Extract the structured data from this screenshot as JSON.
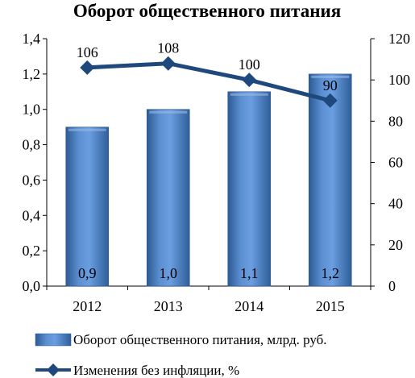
{
  "chart_data": {
    "type": "bar",
    "title": "Оборот общественного питания",
    "categories": [
      "2012",
      "2013",
      "2014",
      "2015"
    ],
    "series": [
      {
        "name": "Оборот общественного питания, млрд. руб.",
        "type": "bar",
        "axis": "left",
        "values": [
          0.9,
          1.0,
          1.1,
          1.2
        ],
        "labels": [
          "0,9",
          "1,0",
          "1,1",
          "1,2"
        ],
        "color": "#4f81bd"
      },
      {
        "name": "Изменения без инфляции, %",
        "type": "line",
        "axis": "right",
        "values": [
          106,
          108,
          100,
          90
        ],
        "labels": [
          "106",
          "108",
          "100",
          "90"
        ],
        "color": "#1f497d"
      }
    ],
    "y_left": {
      "ylim": [
        0,
        1.4
      ],
      "ticks": [
        "0,0",
        "0,2",
        "0,4",
        "0,6",
        "0,8",
        "1,0",
        "1,2",
        "1,4"
      ]
    },
    "y_right": {
      "ylim": [
        0,
        120
      ],
      "ticks": [
        "0",
        "20",
        "40",
        "60",
        "80",
        "100",
        "120"
      ]
    },
    "grid": false,
    "legend_position": "bottom"
  }
}
